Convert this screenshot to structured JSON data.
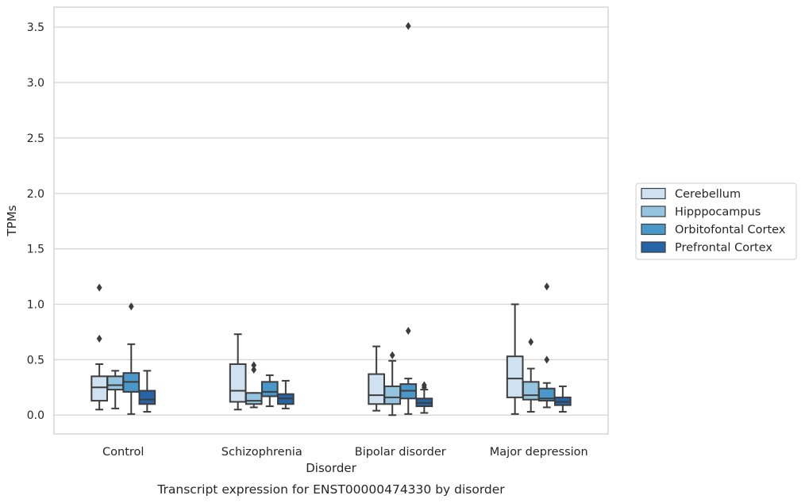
{
  "chart_data": {
    "type": "box",
    "title": "",
    "caption": "Transcript expression for ENST00000474330 by disorder",
    "xlabel": "Disorder",
    "ylabel": "TPMs",
    "ylim": [
      -0.17,
      3.68
    ],
    "yticks": [
      0.0,
      0.5,
      1.0,
      1.5,
      2.0,
      2.5,
      3.0,
      3.5
    ],
    "ytick_labels": [
      "0.0",
      "0.5",
      "1.0",
      "1.5",
      "2.0",
      "2.5",
      "3.0",
      "3.5"
    ],
    "grid": "y",
    "legend_position": "right",
    "categories": [
      "Control",
      "Schizophrenia",
      "Bipolar disorder",
      "Major depression"
    ],
    "series": [
      {
        "name": "Cerebellum",
        "color": "#d0e1f2",
        "boxes": [
          {
            "whislo": 0.05,
            "q1": 0.13,
            "med": 0.25,
            "q3": 0.35,
            "whishi": 0.46,
            "fliers": [
              0.69,
              1.15
            ]
          },
          {
            "whislo": 0.05,
            "q1": 0.12,
            "med": 0.22,
            "q3": 0.46,
            "whishi": 0.73,
            "fliers": []
          },
          {
            "whislo": 0.04,
            "q1": 0.1,
            "med": 0.18,
            "q3": 0.37,
            "whishi": 0.62,
            "fliers": []
          },
          {
            "whislo": 0.01,
            "q1": 0.16,
            "med": 0.33,
            "q3": 0.53,
            "whishi": 1.0,
            "fliers": []
          }
        ]
      },
      {
        "name": "Hipppocampus",
        "color": "#94c4df",
        "boxes": [
          {
            "whislo": 0.06,
            "q1": 0.23,
            "med": 0.27,
            "q3": 0.35,
            "whishi": 0.4,
            "fliers": []
          },
          {
            "whislo": 0.07,
            "q1": 0.1,
            "med": 0.13,
            "q3": 0.2,
            "whishi": 0.2,
            "fliers": [
              0.41,
              0.45
            ]
          },
          {
            "whislo": 0.0,
            "q1": 0.1,
            "med": 0.16,
            "q3": 0.26,
            "whishi": 0.49,
            "fliers": [
              0.54
            ]
          },
          {
            "whislo": 0.03,
            "q1": 0.14,
            "med": 0.18,
            "q3": 0.3,
            "whishi": 0.42,
            "fliers": [
              0.66
            ]
          }
        ]
      },
      {
        "name": "Orbitofontal Cortex",
        "color": "#4a98c9",
        "boxes": [
          {
            "whislo": 0.01,
            "q1": 0.21,
            "med": 0.3,
            "q3": 0.38,
            "whishi": 0.64,
            "fliers": [
              0.98
            ]
          },
          {
            "whislo": 0.08,
            "q1": 0.17,
            "med": 0.21,
            "q3": 0.3,
            "whishi": 0.36,
            "fliers": []
          },
          {
            "whislo": 0.01,
            "q1": 0.15,
            "med": 0.22,
            "q3": 0.28,
            "whishi": 0.33,
            "fliers": [
              0.76,
              3.51
            ]
          },
          {
            "whislo": 0.07,
            "q1": 0.13,
            "med": 0.15,
            "q3": 0.24,
            "whishi": 0.29,
            "fliers": [
              0.5,
              1.16
            ]
          }
        ]
      },
      {
        "name": "Prefrontal Cortex",
        "color": "#2464a7",
        "boxes": [
          {
            "whislo": 0.03,
            "q1": 0.1,
            "med": 0.14,
            "q3": 0.22,
            "whishi": 0.4,
            "fliers": []
          },
          {
            "whislo": 0.06,
            "q1": 0.1,
            "med": 0.15,
            "q3": 0.19,
            "whishi": 0.31,
            "fliers": []
          },
          {
            "whislo": 0.02,
            "q1": 0.08,
            "med": 0.11,
            "q3": 0.15,
            "whishi": 0.23,
            "fliers": [
              0.25,
              0.27
            ]
          },
          {
            "whislo": 0.03,
            "q1": 0.09,
            "med": 0.12,
            "q3": 0.16,
            "whishi": 0.26,
            "fliers": []
          }
        ]
      }
    ]
  }
}
